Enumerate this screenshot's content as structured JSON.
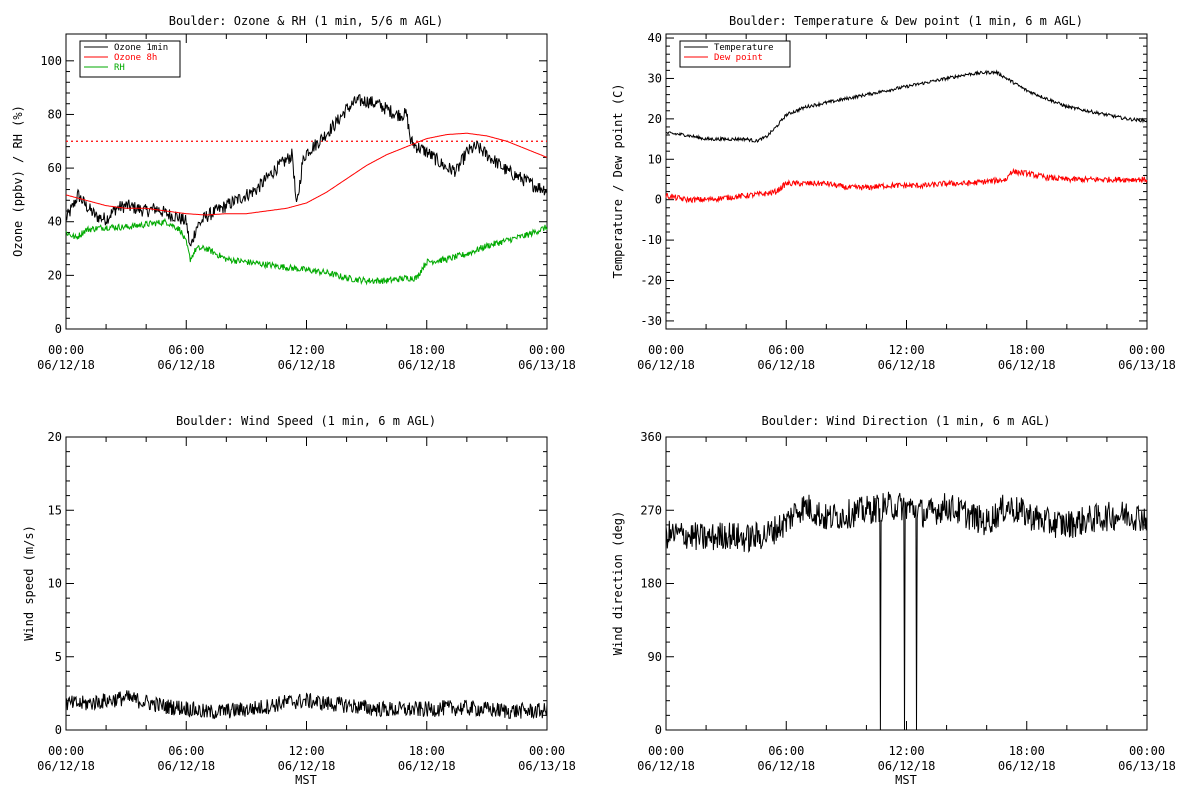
{
  "chart_data": [
    {
      "id": "p1",
      "type": "line",
      "title": "Boulder: Ozone & RH (1 min, 5/6 m AGL)",
      "xlabel": "",
      "ylabel": "Ozone (ppbv) / RH (%)",
      "xlim": [
        0,
        24
      ],
      "ylim": [
        0,
        110
      ],
      "yticks": [
        0,
        20,
        40,
        60,
        80,
        100
      ],
      "xtick_labels": [
        [
          "00:00",
          "06/12/18"
        ],
        [
          "06:00",
          "06/12/18"
        ],
        [
          "12:00",
          "06/12/18"
        ],
        [
          "18:00",
          "06/12/18"
        ],
        [
          "00:00",
          "06/13/18"
        ]
      ],
      "legend_position": "top-left",
      "threshold": {
        "y": 70,
        "color": "#ff0000",
        "style": "dotted"
      },
      "series": [
        {
          "name": "Ozone 1min",
          "color": "#000000",
          "noise": 2.5,
          "zero_spikes": [],
          "x": [
            0,
            0.3,
            0.6,
            1,
            1.5,
            2,
            2.5,
            3,
            3.5,
            4,
            4.5,
            5,
            5.5,
            6,
            6.2,
            6.5,
            7,
            7.5,
            8,
            8.5,
            9,
            9.5,
            10,
            10.5,
            11,
            11.3,
            11.5,
            11.8,
            12,
            12.5,
            13,
            13.5,
            14,
            14.5,
            15,
            15.5,
            16,
            16.5,
            17,
            17.2,
            17.5,
            18,
            18.5,
            19,
            19.5,
            20,
            20.5,
            21,
            21.5,
            22,
            22.5,
            23,
            23.5,
            24
          ],
          "y": [
            41,
            45,
            50,
            46,
            42,
            41,
            45,
            46,
            45,
            44,
            45,
            43,
            42,
            40,
            30,
            38,
            42,
            44,
            46,
            48,
            50,
            52,
            56,
            60,
            63,
            65,
            45,
            62,
            66,
            69,
            73,
            77,
            82,
            85,
            85,
            84,
            82,
            80,
            80,
            70,
            68,
            66,
            63,
            60,
            59,
            66,
            68,
            65,
            62,
            59,
            57,
            55,
            53,
            52
          ]
        },
        {
          "name": "Ozone 8h",
          "color": "#ff0000",
          "noise": 0,
          "zero_spikes": [],
          "x": [
            0,
            1,
            2,
            3,
            4,
            5,
            6,
            7,
            8,
            9,
            10,
            11,
            12,
            13,
            14,
            15,
            16,
            17,
            18,
            19,
            20,
            21,
            22,
            23,
            24
          ],
          "y": [
            50,
            48,
            46,
            45,
            45,
            44,
            43,
            42.5,
            43,
            43,
            44,
            45,
            47,
            51,
            56,
            61,
            65,
            68,
            71,
            72.5,
            73,
            72,
            70,
            67,
            64
          ]
        },
        {
          "name": "RH",
          "color": "#00aa00",
          "noise": 1.2,
          "zero_spikes": [],
          "x": [
            0,
            0.5,
            1,
            2,
            3,
            4,
            5,
            5.7,
            6,
            6.2,
            6.5,
            7,
            8,
            9,
            10,
            11,
            12,
            13,
            14,
            15,
            16,
            17,
            17.5,
            17.8,
            18,
            19,
            20,
            21,
            22,
            23,
            24
          ],
          "y": [
            36,
            34,
            37,
            38,
            38,
            39,
            40,
            37,
            32,
            26,
            30,
            30,
            26,
            25,
            24,
            23,
            22,
            21,
            19,
            18,
            18,
            19,
            19,
            23,
            25,
            26,
            28,
            31,
            33,
            35,
            38
          ]
        }
      ]
    },
    {
      "id": "p2",
      "type": "line",
      "title": "Boulder: Temperature & Dew point (1 min, 6 m AGL)",
      "xlabel": "",
      "ylabel": "Temperature / Dew point (C)",
      "xlim": [
        0,
        24
      ],
      "ylim": [
        -32,
        41
      ],
      "yticks": [
        -30,
        -20,
        -10,
        0,
        10,
        20,
        30,
        40
      ],
      "xtick_labels": [
        [
          "00:00",
          "06/12/18"
        ],
        [
          "06:00",
          "06/12/18"
        ],
        [
          "12:00",
          "06/12/18"
        ],
        [
          "18:00",
          "06/12/18"
        ],
        [
          "00:00",
          "06/13/18"
        ]
      ],
      "legend_position": "top-left",
      "series": [
        {
          "name": "Temperature",
          "color": "#000000",
          "noise": 0.4,
          "zero_spikes": [],
          "x": [
            0,
            1,
            2,
            3,
            4,
            4.5,
            5,
            5.5,
            6,
            7,
            8,
            9,
            10,
            11,
            12,
            13,
            14,
            15,
            16,
            16.5,
            17,
            18,
            19,
            20,
            21,
            22,
            23,
            24
          ],
          "y": [
            16.5,
            16,
            15,
            15,
            15,
            14.5,
            15.5,
            18,
            21,
            23,
            24,
            25,
            26,
            27,
            28,
            29,
            30,
            31,
            31.5,
            31.5,
            30,
            27,
            25,
            23,
            22,
            21,
            20,
            19.5
          ]
        },
        {
          "name": "Dew point",
          "color": "#ff0000",
          "noise": 0.7,
          "zero_spikes": [],
          "x": [
            0,
            1,
            2,
            3,
            4,
            5,
            5.5,
            6,
            7,
            8,
            9,
            10,
            11,
            12,
            13,
            14,
            15,
            16,
            17,
            17.2,
            18,
            19,
            20,
            21,
            22,
            23,
            24
          ],
          "y": [
            1,
            0,
            0,
            0.5,
            1,
            1.5,
            2,
            4,
            4,
            4,
            3,
            3,
            3.5,
            3.5,
            3.5,
            4,
            4,
            4.5,
            5,
            7,
            6.5,
            5.5,
            5,
            5,
            5,
            5,
            5
          ]
        }
      ]
    },
    {
      "id": "p3",
      "type": "line",
      "title": "Boulder: Wind Speed (1 min, 6 m AGL)",
      "xlabel": "MST",
      "ylabel": "Wind speed (m/s)",
      "xlim": [
        0,
        24
      ],
      "ylim": [
        0,
        20
      ],
      "yticks": [
        0,
        5,
        10,
        15,
        20
      ],
      "xtick_labels": [
        [
          "00:00",
          "06/12/18"
        ],
        [
          "06:00",
          "06/12/18"
        ],
        [
          "12:00",
          "06/12/18"
        ],
        [
          "18:00",
          "06/12/18"
        ],
        [
          "00:00",
          "06/13/18"
        ]
      ],
      "legend_position": "",
      "series": [
        {
          "name": "",
          "color": "#000000",
          "noise": 0.55,
          "zero_spikes": [],
          "x": [
            0,
            1,
            2,
            3,
            4,
            5,
            6,
            7,
            8,
            9,
            10,
            11,
            12,
            13,
            14,
            15,
            16,
            17,
            18,
            19,
            20,
            21,
            22,
            23,
            24
          ],
          "y": [
            1.8,
            1.8,
            2,
            2.2,
            1.9,
            1.6,
            1.5,
            1.2,
            1.3,
            1.4,
            1.6,
            1.9,
            2,
            1.8,
            1.7,
            1.5,
            1.4,
            1.4,
            1.4,
            1.5,
            1.5,
            1.4,
            1.3,
            1.3,
            1.3
          ]
        }
      ]
    },
    {
      "id": "p4",
      "type": "line",
      "title": "Boulder: Wind Direction (1 min, 6 m AGL)",
      "xlabel": "MST",
      "ylabel": "Wind direction (deg)",
      "xlim": [
        0,
        24
      ],
      "ylim": [
        0,
        360
      ],
      "yticks": [
        0,
        90,
        180,
        270,
        360
      ],
      "xtick_labels": [
        [
          "00:00",
          "06/12/18"
        ],
        [
          "06:00",
          "06/12/18"
        ],
        [
          "12:00",
          "06/12/18"
        ],
        [
          "18:00",
          "06/12/18"
        ],
        [
          "00:00",
          "06/13/18"
        ]
      ],
      "legend_position": "",
      "series": [
        {
          "name": "",
          "color": "#000000",
          "noise": 18,
          "zero_spikes": [
            10.7,
            11.9,
            12.5
          ],
          "x": [
            0,
            1,
            2,
            3,
            4,
            5,
            6,
            6.5,
            7,
            8,
            9,
            10,
            11,
            12,
            13,
            14,
            15,
            16,
            17,
            17.5,
            18,
            19,
            20,
            21,
            22,
            23,
            24
          ],
          "y": [
            240,
            240,
            235,
            240,
            235,
            240,
            255,
            270,
            275,
            260,
            265,
            270,
            275,
            275,
            265,
            275,
            265,
            255,
            275,
            270,
            265,
            255,
            252,
            258,
            262,
            265,
            260
          ]
        }
      ]
    }
  ]
}
